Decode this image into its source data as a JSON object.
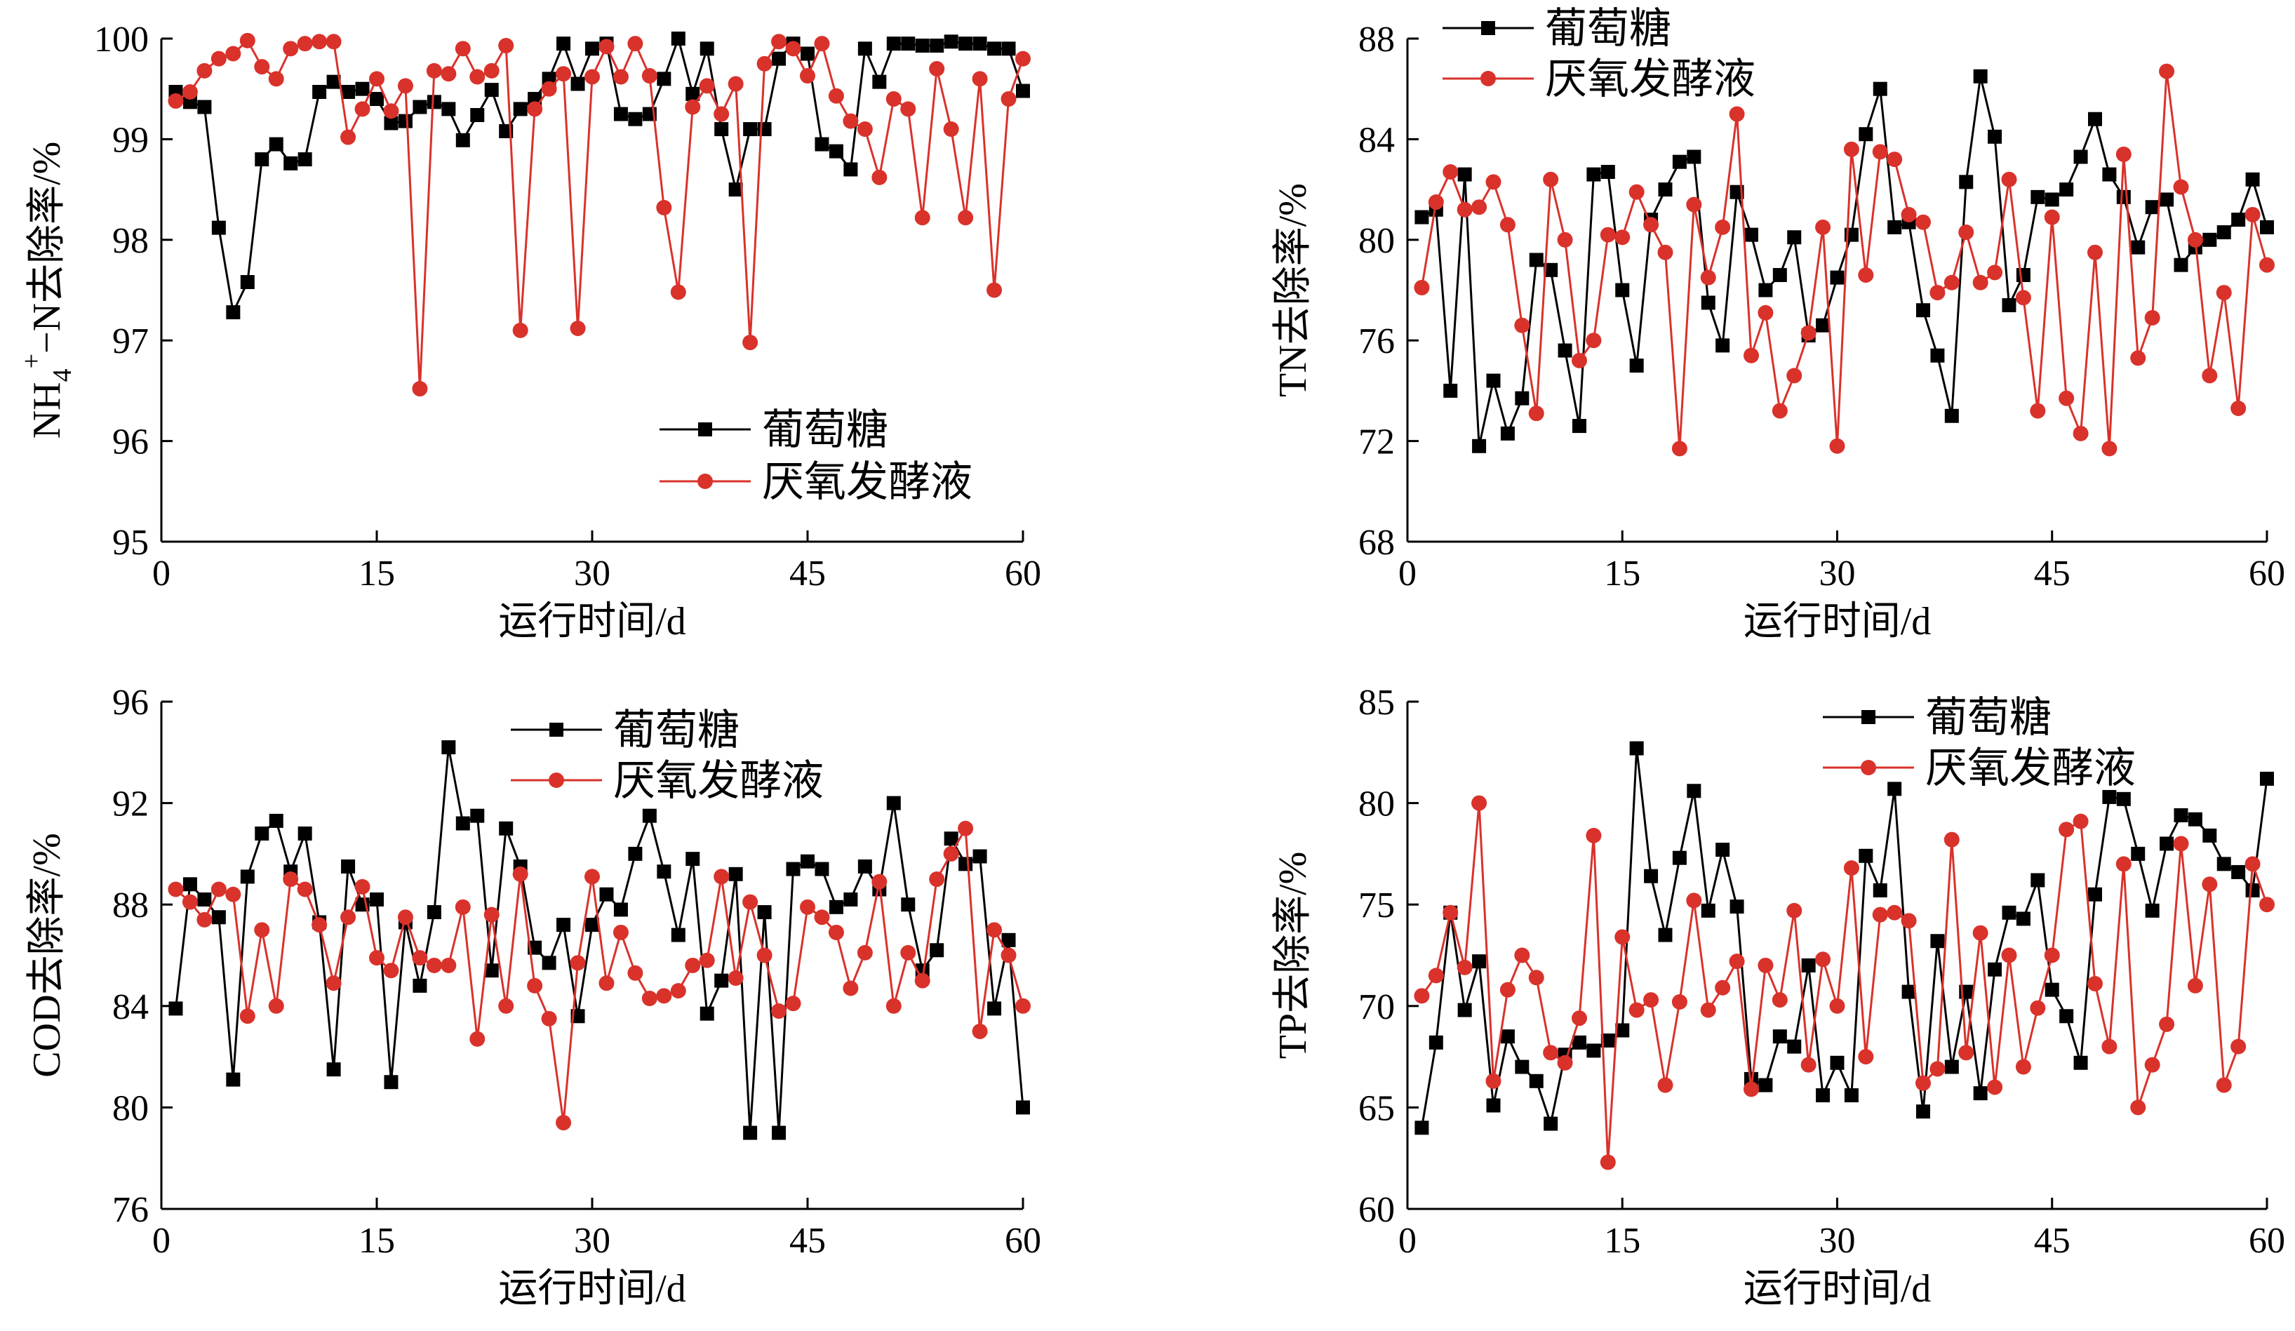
{
  "colors": {
    "glucose": "#000000",
    "fermentation": "#d9322b",
    "axis": "#000000"
  },
  "legend_names": [
    "葡萄糖",
    "厌氧发酵液"
  ],
  "chart_data": [
    {
      "type": "line",
      "xlabel": "运行时间/d",
      "ylabel": {
        "pre": "NH",
        "sub": "4",
        "sup": "+",
        "post": "−N去除率/%"
      },
      "xlim": [
        0,
        60
      ],
      "ylim": [
        95,
        100
      ],
      "xticks": [
        0,
        15,
        30,
        45,
        60
      ],
      "yticks": [
        95,
        96,
        97,
        98,
        99,
        100
      ],
      "legend": "bottom-right",
      "series": [
        {
          "name": "葡萄糖",
          "marker": "square",
          "x": [
            1,
            2,
            3,
            4,
            5,
            6,
            7,
            8,
            9,
            10,
            11,
            12,
            13,
            14,
            15,
            16,
            17,
            18,
            19,
            20,
            21,
            22,
            23,
            24,
            25,
            26,
            27,
            28,
            29,
            30,
            31,
            32,
            33,
            34,
            35,
            36,
            37,
            38,
            39,
            40,
            41,
            42,
            43,
            44,
            45,
            46,
            47,
            48,
            49,
            50,
            51,
            52,
            53,
            54,
            55,
            56,
            57,
            58,
            59,
            60
          ],
          "values": [
            99.47,
            99.37,
            99.32,
            98.12,
            97.28,
            97.58,
            98.8,
            98.95,
            98.76,
            98.8,
            99.47,
            99.57,
            99.47,
            99.5,
            99.4,
            99.16,
            99.18,
            99.32,
            99.37,
            99.3,
            98.99,
            99.24,
            99.49,
            99.08,
            99.3,
            99.4,
            99.6,
            99.95,
            99.55,
            99.9,
            99.95,
            99.25,
            99.2,
            99.25,
            99.6,
            100.0,
            99.45,
            99.9,
            99.1,
            98.5,
            99.1,
            99.1,
            99.8,
            99.95,
            99.85,
            98.95,
            98.88,
            98.7,
            99.9,
            99.57,
            99.95,
            99.95,
            99.93,
            99.93,
            99.97,
            99.95,
            99.95,
            99.9,
            99.9,
            99.48
          ]
        },
        {
          "name": "厌氧发酵液",
          "marker": "circle",
          "x": [
            1,
            2,
            3,
            4,
            5,
            6,
            7,
            8,
            9,
            10,
            11,
            12,
            13,
            14,
            15,
            16,
            17,
            18,
            19,
            20,
            21,
            22,
            23,
            24,
            25,
            26,
            27,
            28,
            29,
            30,
            31,
            32,
            33,
            34,
            35,
            36,
            37,
            38,
            39,
            40,
            41,
            42,
            43,
            44,
            45,
            46,
            47,
            48,
            49,
            50,
            51,
            52,
            53,
            54,
            55,
            56,
            57,
            58,
            59,
            60
          ],
          "values": [
            99.38,
            99.47,
            99.68,
            99.8,
            99.85,
            99.98,
            99.72,
            99.6,
            99.9,
            99.95,
            99.97,
            99.97,
            99.02,
            99.3,
            99.6,
            99.28,
            99.53,
            96.52,
            99.68,
            99.65,
            99.9,
            99.62,
            99.68,
            99.93,
            97.1,
            99.3,
            99.5,
            99.65,
            97.12,
            99.62,
            99.92,
            99.62,
            99.95,
            99.63,
            98.32,
            97.48,
            99.32,
            99.53,
            99.25,
            99.55,
            96.98,
            99.75,
            99.97,
            99.9,
            99.63,
            99.95,
            99.43,
            99.18,
            99.1,
            98.62,
            99.4,
            99.3,
            98.22,
            99.7,
            99.1,
            98.22,
            99.6,
            97.5,
            99.4,
            99.8
          ]
        }
      ]
    },
    {
      "type": "line",
      "xlabel": "运行时间/d",
      "ylabel": "TN去除率/%",
      "xlim": [
        0,
        60
      ],
      "ylim": [
        68,
        88
      ],
      "xticks": [
        0,
        15,
        30,
        45,
        60
      ],
      "yticks": [
        68,
        72,
        76,
        80,
        84,
        88
      ],
      "legend": "top-left",
      "series": [
        {
          "name": "葡萄糖",
          "marker": "square",
          "x": [
            1,
            2,
            3,
            4,
            5,
            6,
            7,
            8,
            9,
            10,
            11,
            12,
            13,
            14,
            15,
            16,
            17,
            18,
            19,
            20,
            21,
            22,
            23,
            24,
            25,
            26,
            27,
            28,
            29,
            30,
            31,
            32,
            33,
            34,
            35,
            36,
            37,
            38,
            39,
            40,
            41,
            42,
            43,
            44,
            45,
            46,
            47,
            48,
            49,
            50,
            51,
            52,
            53,
            54,
            55,
            56,
            57,
            58,
            59,
            60
          ],
          "values": [
            80.9,
            81.2,
            74.0,
            82.6,
            71.8,
            74.4,
            72.3,
            73.7,
            79.2,
            78.8,
            75.6,
            72.6,
            82.6,
            82.7,
            78.0,
            75.0,
            80.8,
            82.0,
            83.1,
            83.3,
            77.5,
            75.8,
            81.9,
            80.2,
            78.0,
            78.6,
            80.1,
            76.2,
            76.6,
            78.5,
            80.2,
            84.2,
            86.0,
            80.5,
            80.7,
            77.2,
            75.4,
            73.0,
            82.3,
            86.5,
            84.1,
            77.4,
            78.6,
            81.7,
            81.6,
            82.0,
            83.3,
            84.8,
            82.6,
            81.7,
            79.7,
            81.3,
            81.6,
            79.0,
            79.7,
            80.0,
            80.3,
            80.8,
            82.4,
            80.5
          ]
        },
        {
          "name": "厌氧发酵液",
          "marker": "circle",
          "x": [
            1,
            2,
            3,
            4,
            5,
            6,
            7,
            8,
            9,
            10,
            11,
            12,
            13,
            14,
            15,
            16,
            17,
            18,
            19,
            20,
            21,
            22,
            23,
            24,
            25,
            26,
            27,
            28,
            29,
            30,
            31,
            32,
            33,
            34,
            35,
            36,
            37,
            38,
            39,
            40,
            41,
            42,
            43,
            44,
            45,
            46,
            47,
            48,
            49,
            50,
            51,
            52,
            53,
            54,
            55,
            56,
            57,
            58,
            59,
            60
          ],
          "values": [
            78.1,
            81.5,
            82.7,
            81.2,
            81.3,
            82.3,
            80.6,
            76.6,
            73.1,
            82.4,
            80.0,
            75.2,
            76.0,
            80.2,
            80.1,
            81.9,
            80.6,
            79.5,
            71.7,
            81.4,
            78.5,
            80.5,
            85.0,
            75.4,
            77.1,
            73.2,
            74.6,
            76.3,
            80.5,
            71.8,
            83.6,
            78.6,
            83.5,
            83.2,
            81.0,
            80.7,
            77.9,
            78.3,
            80.3,
            78.3,
            78.7,
            82.4,
            77.7,
            73.2,
            80.9,
            73.7,
            72.3,
            79.5,
            71.7,
            83.4,
            75.3,
            76.9,
            86.7,
            82.1,
            80.0,
            74.6,
            77.9,
            73.3,
            81.0,
            79.0
          ]
        }
      ]
    },
    {
      "type": "line",
      "xlabel": "运行时间/d",
      "ylabel": "COD去除率/%",
      "xlim": [
        0,
        60
      ],
      "ylim": [
        76,
        96
      ],
      "xticks": [
        0,
        15,
        30,
        45,
        60
      ],
      "yticks": [
        76,
        80,
        84,
        88,
        92,
        96
      ],
      "legend": "top-right",
      "series": [
        {
          "name": "葡萄糖",
          "marker": "square",
          "x": [
            1,
            2,
            3,
            4,
            5,
            6,
            7,
            8,
            9,
            10,
            11,
            12,
            13,
            14,
            15,
            16,
            17,
            18,
            19,
            20,
            21,
            22,
            23,
            24,
            25,
            26,
            27,
            28,
            29,
            30,
            31,
            32,
            33,
            34,
            35,
            36,
            37,
            38,
            39,
            40,
            41,
            42,
            43,
            44,
            45,
            46,
            47,
            48,
            49,
            50,
            51,
            52,
            53,
            54,
            55,
            56,
            57,
            58,
            59,
            60
          ],
          "values": [
            83.9,
            88.8,
            88.2,
            87.5,
            81.1,
            89.1,
            90.8,
            91.3,
            89.3,
            90.8,
            87.3,
            81.5,
            89.5,
            88.0,
            88.2,
            81.0,
            87.3,
            84.8,
            87.7,
            94.2,
            91.2,
            91.5,
            85.4,
            91.0,
            89.5,
            86.3,
            85.7,
            87.2,
            83.6,
            87.2,
            88.4,
            87.8,
            90.0,
            91.5,
            89.3,
            86.8,
            89.8,
            83.7,
            85.0,
            89.2,
            79.0,
            87.7,
            79.0,
            89.4,
            89.7,
            89.4,
            87.9,
            88.2,
            89.5,
            88.6,
            92.0,
            88.0,
            85.4,
            86.2,
            90.6,
            89.6,
            89.9,
            83.9,
            86.6,
            80.0
          ]
        },
        {
          "name": "厌氧发酵液",
          "marker": "circle",
          "x": [
            1,
            2,
            3,
            4,
            5,
            6,
            7,
            8,
            9,
            10,
            11,
            12,
            13,
            14,
            15,
            16,
            17,
            18,
            19,
            20,
            21,
            22,
            23,
            24,
            25,
            26,
            27,
            28,
            29,
            30,
            31,
            32,
            33,
            34,
            35,
            36,
            37,
            38,
            39,
            40,
            41,
            42,
            43,
            44,
            45,
            46,
            47,
            48,
            49,
            50,
            51,
            52,
            53,
            54,
            55,
            56,
            57,
            58,
            59,
            60
          ],
          "values": [
            88.6,
            88.1,
            87.4,
            88.6,
            88.4,
            83.6,
            87.0,
            84.0,
            89.0,
            88.6,
            87.2,
            84.9,
            87.5,
            88.7,
            85.9,
            85.4,
            87.5,
            85.9,
            85.6,
            85.6,
            87.9,
            82.7,
            87.6,
            84.0,
            89.2,
            84.8,
            83.5,
            79.4,
            85.7,
            89.1,
            84.9,
            86.9,
            85.3,
            84.3,
            84.4,
            84.6,
            85.6,
            85.8,
            89.1,
            85.1,
            88.1,
            86.0,
            83.8,
            84.1,
            87.9,
            87.5,
            86.9,
            84.7,
            86.1,
            88.9,
            84.0,
            86.1,
            85.0,
            89.0,
            90.0,
            91.0,
            83.0,
            87.0,
            86.0,
            84.0
          ]
        }
      ]
    },
    {
      "type": "line",
      "xlabel": "运行时间/d",
      "ylabel": "TP去除率/%",
      "xlim": [
        0,
        60
      ],
      "ylim": [
        60,
        85
      ],
      "xticks": [
        0,
        15,
        30,
        45,
        60
      ],
      "yticks": [
        60,
        65,
        70,
        75,
        80,
        85
      ],
      "legend": "top-right",
      "series": [
        {
          "name": "葡萄糖",
          "marker": "square",
          "x": [
            1,
            2,
            3,
            4,
            5,
            6,
            7,
            8,
            9,
            10,
            11,
            12,
            13,
            14,
            15,
            16,
            17,
            18,
            19,
            20,
            21,
            22,
            23,
            24,
            25,
            26,
            27,
            28,
            29,
            30,
            31,
            32,
            33,
            34,
            35,
            36,
            37,
            38,
            39,
            40,
            41,
            42,
            43,
            44,
            45,
            46,
            47,
            48,
            49,
            50,
            51,
            52,
            53,
            54,
            55,
            56,
            57,
            58,
            59,
            60
          ],
          "values": [
            64.0,
            68.2,
            74.6,
            69.8,
            72.2,
            65.1,
            68.5,
            67.0,
            66.3,
            64.2,
            67.6,
            68.2,
            67.8,
            68.3,
            68.8,
            82.7,
            76.4,
            73.5,
            77.3,
            80.6,
            74.7,
            77.7,
            74.9,
            66.4,
            66.1,
            68.5,
            68.0,
            72.0,
            65.6,
            67.2,
            65.6,
            77.4,
            75.7,
            80.7,
            70.7,
            64.8,
            73.2,
            67.0,
            70.7,
            65.7,
            71.8,
            74.6,
            74.3,
            76.2,
            70.8,
            69.5,
            67.2,
            75.5,
            80.3,
            80.2,
            77.5,
            74.7,
            78.0,
            79.4,
            79.2,
            78.4,
            77.0,
            76.6,
            75.7,
            81.2
          ]
        },
        {
          "name": "厌氧发酵液",
          "marker": "circle",
          "x": [
            1,
            2,
            3,
            4,
            5,
            6,
            7,
            8,
            9,
            10,
            11,
            12,
            13,
            14,
            15,
            16,
            17,
            18,
            19,
            20,
            21,
            22,
            23,
            24,
            25,
            26,
            27,
            28,
            29,
            30,
            31,
            32,
            33,
            34,
            35,
            36,
            37,
            38,
            39,
            40,
            41,
            42,
            43,
            44,
            45,
            46,
            47,
            48,
            49,
            50,
            51,
            52,
            53,
            54,
            55,
            56,
            57,
            58,
            59,
            60
          ],
          "values": [
            70.5,
            71.5,
            74.6,
            71.9,
            80.0,
            66.3,
            70.8,
            72.5,
            71.4,
            67.7,
            67.2,
            69.4,
            78.4,
            62.3,
            73.4,
            69.8,
            70.3,
            66.1,
            70.2,
            75.2,
            69.8,
            70.9,
            72.2,
            65.9,
            72.0,
            70.3,
            74.7,
            67.1,
            72.3,
            70.0,
            76.8,
            67.5,
            74.5,
            74.6,
            74.2,
            66.2,
            66.9,
            78.2,
            67.7,
            73.6,
            66.0,
            72.5,
            67.0,
            69.9,
            72.5,
            78.7,
            79.1,
            71.1,
            68.0,
            77.0,
            65.0,
            67.1,
            69.1,
            78.0,
            71.0,
            76.0,
            66.1,
            68.0,
            77.0,
            75.0
          ]
        }
      ]
    }
  ]
}
